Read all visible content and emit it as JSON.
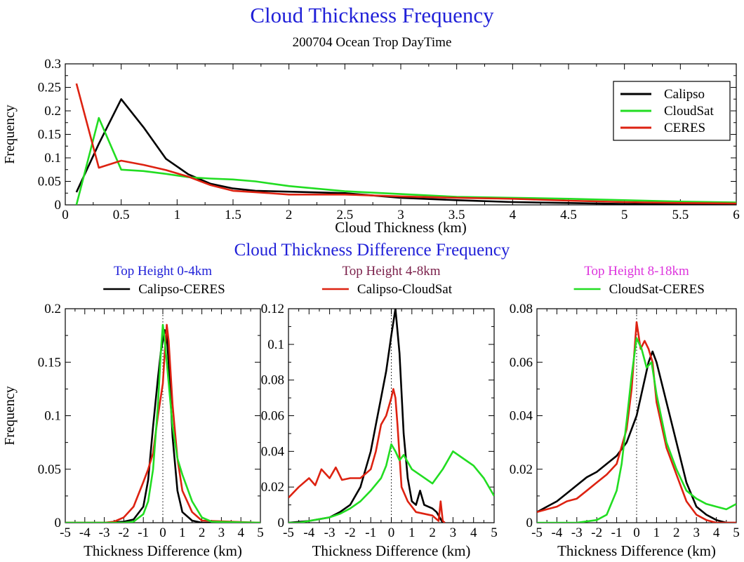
{
  "title": "Cloud Thickness Frequency",
  "subtitle": "200704 Ocean Trop DayTime",
  "section_title": "Cloud Thickness Difference Frequency",
  "chart_data": [
    {
      "type": "line",
      "title": "Cloud Thickness Frequency",
      "subtitle": "200704 Ocean Trop DayTime",
      "xlabel": "Cloud Thickness (km)",
      "ylabel": "Frequency",
      "xlim": [
        0,
        6
      ],
      "ylim": [
        0,
        0.3
      ],
      "xticks": [
        "0",
        "0.5",
        "1",
        "1.5",
        "2",
        "2.5",
        "3",
        "3.5",
        "4",
        "4.5",
        "5",
        "5.5",
        "6"
      ],
      "yticks": [
        "0",
        "0.05",
        "0.1",
        "0.15",
        "0.2",
        "0.25",
        "0.3"
      ],
      "legend": "top-right",
      "grid": false,
      "series": [
        {
          "name": "Calipso",
          "color": "#000000",
          "x": [
            0.1,
            0.3,
            0.5,
            0.7,
            0.9,
            1.1,
            1.3,
            1.5,
            1.7,
            2.0,
            2.5,
            3.0,
            3.5,
            4.0,
            4.5,
            5.0,
            5.5,
            6.0
          ],
          "y": [
            0.027,
            0.13,
            0.225,
            0.165,
            0.098,
            0.065,
            0.045,
            0.035,
            0.03,
            0.028,
            0.025,
            0.015,
            0.01,
            0.006,
            0.004,
            0.002,
            0.001,
            0.001
          ]
        },
        {
          "name": "CloudSat",
          "color": "#22dd22",
          "x": [
            0.1,
            0.3,
            0.5,
            0.7,
            0.9,
            1.1,
            1.3,
            1.5,
            1.7,
            2.0,
            2.5,
            3.0,
            3.5,
            4.0,
            4.5,
            5.0,
            5.5,
            6.0
          ],
          "y": [
            0.0,
            0.185,
            0.075,
            0.072,
            0.066,
            0.059,
            0.056,
            0.054,
            0.05,
            0.04,
            0.029,
            0.023,
            0.017,
            0.015,
            0.013,
            0.01,
            0.007,
            0.005
          ]
        },
        {
          "name": "CERES",
          "color": "#dd2211",
          "x": [
            0.1,
            0.3,
            0.5,
            0.7,
            0.9,
            1.1,
            1.3,
            1.5,
            1.7,
            2.0,
            2.5,
            3.0,
            3.5,
            4.0,
            4.5,
            5.0,
            5.5,
            6.0
          ],
          "y": [
            0.258,
            0.079,
            0.094,
            0.085,
            0.074,
            0.06,
            0.042,
            0.03,
            0.027,
            0.022,
            0.022,
            0.018,
            0.015,
            0.013,
            0.009,
            0.006,
            0.004,
            0.003
          ]
        }
      ]
    },
    {
      "type": "line",
      "title": "Top Height 0-4km",
      "title_color": "#2020d8",
      "legend_entry": {
        "name": "Calipso-CERES",
        "color": "#000000"
      },
      "xlabel": "Thickness Difference (km)",
      "ylabel": "Frequency",
      "xlim": [
        -5,
        5
      ],
      "ylim": [
        0,
        0.2
      ],
      "xticks": [
        "-5",
        "-4",
        "-3",
        "-2",
        "-1",
        "0",
        "1",
        "2",
        "3",
        "4",
        "5"
      ],
      "yticks": [
        "0",
        "0.05",
        "0.1",
        "0.15",
        "0.2"
      ],
      "zero_line": true,
      "series": [
        {
          "name": "Calipso-CERES",
          "color": "#000000",
          "x": [
            -5,
            -3,
            -2,
            -1.5,
            -1,
            -0.75,
            -0.5,
            -0.25,
            -0.1,
            0,
            0.1,
            0.2,
            0.3,
            0.5,
            0.75,
            1,
            1.5,
            2,
            5
          ],
          "y": [
            0,
            0,
            0.001,
            0.003,
            0.015,
            0.04,
            0.09,
            0.135,
            0.16,
            0.17,
            0.18,
            0.175,
            0.15,
            0.08,
            0.03,
            0.01,
            0.002,
            0,
            0
          ]
        },
        {
          "name": "Calipso-CloudSat",
          "color": "#dd2211",
          "x": [
            -5,
            -3,
            -2.5,
            -2,
            -1.5,
            -1,
            -0.75,
            -0.5,
            -0.25,
            0,
            0.1,
            0.2,
            0.3,
            0.5,
            0.75,
            1,
            1.5,
            2,
            5
          ],
          "y": [
            0,
            0,
            0.001,
            0.005,
            0.015,
            0.038,
            0.05,
            0.065,
            0.1,
            0.13,
            0.16,
            0.185,
            0.17,
            0.11,
            0.06,
            0.03,
            0.01,
            0.002,
            0
          ]
        },
        {
          "name": "CloudSat-CERES",
          "color": "#22dd22",
          "x": [
            -5,
            -2,
            -1.5,
            -1,
            -0.75,
            -0.5,
            -0.25,
            -0.1,
            0,
            0.1,
            0.25,
            0.5,
            0.75,
            1,
            1.5,
            2,
            2.5,
            5
          ],
          "y": [
            0,
            0,
            0.001,
            0.008,
            0.02,
            0.05,
            0.11,
            0.16,
            0.185,
            0.17,
            0.14,
            0.09,
            0.06,
            0.045,
            0.02,
            0.005,
            0.001,
            0
          ]
        }
      ]
    },
    {
      "type": "line",
      "title": "Top Height 4-8km",
      "title_color": "#7a1f4a",
      "legend_entry": {
        "name": "Calipso-CloudSat",
        "color": "#dd2211"
      },
      "xlabel": "Thickness Difference (km)",
      "ylabel": "",
      "xlim": [
        -5,
        5
      ],
      "ylim": [
        0,
        0.12
      ],
      "xticks": [
        "-5",
        "-4",
        "-3",
        "-2",
        "-1",
        "0",
        "1",
        "2",
        "3",
        "4",
        "5"
      ],
      "yticks": [
        "0",
        "0.02",
        "0.04",
        "0.06",
        "0.08",
        "0.1",
        "0.12"
      ],
      "zero_line": true,
      "series": [
        {
          "name": "Calipso-CERES",
          "color": "#000000",
          "x": [
            -5,
            -4,
            -3,
            -2.5,
            -2,
            -1.5,
            -1,
            -0.75,
            -0.5,
            -0.25,
            0,
            0.2,
            0.4,
            0.6,
            0.8,
            1,
            1.2,
            1.4,
            1.6,
            2,
            2.2,
            2.5
          ],
          "y": [
            0,
            0.001,
            0.003,
            0.006,
            0.01,
            0.02,
            0.04,
            0.055,
            0.07,
            0.085,
            0.105,
            0.12,
            0.095,
            0.05,
            0.025,
            0.012,
            0.01,
            0.018,
            0.01,
            0.008,
            0.006,
            0
          ]
        },
        {
          "name": "Calipso-CloudSat",
          "color": "#dd2211",
          "x": [
            -5,
            -4.5,
            -4,
            -3.7,
            -3.4,
            -3,
            -2.7,
            -2.4,
            -2,
            -1.5,
            -1,
            -0.75,
            -0.5,
            -0.25,
            0,
            0.1,
            0.2,
            0.3,
            0.5,
            0.8,
            1.2,
            1.6,
            2,
            2.3,
            2.4,
            2.5,
            2.6
          ],
          "y": [
            0.014,
            0.02,
            0.025,
            0.021,
            0.03,
            0.025,
            0.031,
            0.024,
            0.025,
            0.025,
            0.03,
            0.04,
            0.055,
            0.06,
            0.07,
            0.075,
            0.07,
            0.055,
            0.02,
            0.012,
            0.006,
            0.005,
            0.004,
            0.001,
            0.012,
            0.001,
            0
          ]
        },
        {
          "name": "CloudSat-CERES",
          "color": "#22dd22",
          "x": [
            -5,
            -4.5,
            -4,
            -3.5,
            -3,
            -2.5,
            -2,
            -1.5,
            -1,
            -0.5,
            -0.25,
            0,
            0.2,
            0.4,
            0.6,
            1,
            1.5,
            2,
            2.5,
            3,
            3.5,
            4,
            4.5,
            5
          ],
          "y": [
            0,
            0,
            0.001,
            0.002,
            0.003,
            0.005,
            0.008,
            0.012,
            0.018,
            0.025,
            0.032,
            0.044,
            0.04,
            0.035,
            0.038,
            0.03,
            0.026,
            0.022,
            0.03,
            0.04,
            0.036,
            0.032,
            0.025,
            0.015
          ]
        }
      ]
    },
    {
      "type": "line",
      "title": "Top Height 8-18km",
      "title_color": "#dd33dd",
      "legend_entry": {
        "name": "CloudSat-CERES",
        "color": "#22dd22"
      },
      "xlabel": "Thickness Difference (km)",
      "ylabel": "",
      "xlim": [
        -5,
        5
      ],
      "ylim": [
        0,
        0.08
      ],
      "xticks": [
        "-5",
        "-4",
        "-3",
        "-2",
        "-1",
        "0",
        "1",
        "2",
        "3",
        "4",
        "5"
      ],
      "yticks": [
        "0",
        "0.02",
        "0.04",
        "0.06",
        "0.08"
      ],
      "zero_line": true,
      "series": [
        {
          "name": "Calipso-CERES",
          "color": "#000000",
          "x": [
            -5,
            -4.5,
            -4,
            -3.5,
            -3,
            -2.5,
            -2,
            -1.5,
            -1,
            -0.5,
            0,
            0.3,
            0.6,
            0.8,
            1,
            1.5,
            2,
            2.5,
            3,
            3.5,
            4,
            4.5,
            5
          ],
          "y": [
            0.004,
            0.006,
            0.008,
            0.011,
            0.014,
            0.017,
            0.019,
            0.022,
            0.025,
            0.03,
            0.04,
            0.05,
            0.06,
            0.064,
            0.06,
            0.045,
            0.03,
            0.015,
            0.006,
            0.003,
            0.001,
            0,
            0
          ]
        },
        {
          "name": "Calipso-CloudSat",
          "color": "#dd2211",
          "x": [
            -5,
            -4.5,
            -4,
            -3.5,
            -3,
            -2.5,
            -2,
            -1.5,
            -1,
            -0.5,
            -0.25,
            0,
            0.2,
            0.4,
            0.6,
            0.8,
            1,
            1.5,
            2,
            2.5,
            3,
            3.5,
            4,
            5
          ],
          "y": [
            0.004,
            0.005,
            0.006,
            0.008,
            0.009,
            0.012,
            0.015,
            0.018,
            0.022,
            0.035,
            0.05,
            0.075,
            0.065,
            0.068,
            0.065,
            0.06,
            0.045,
            0.028,
            0.018,
            0.008,
            0.003,
            0.001,
            0,
            0
          ]
        },
        {
          "name": "CloudSat-CERES",
          "color": "#22dd22",
          "x": [
            -5,
            -3,
            -2,
            -1.5,
            -1,
            -0.75,
            -0.5,
            -0.25,
            0,
            0.25,
            0.5,
            0.75,
            1,
            1.5,
            2,
            2.5,
            3,
            3.5,
            4,
            4.5,
            5
          ],
          "y": [
            0,
            0,
            0.001,
            0.003,
            0.012,
            0.022,
            0.038,
            0.055,
            0.069,
            0.065,
            0.058,
            0.06,
            0.048,
            0.03,
            0.02,
            0.012,
            0.009,
            0.007,
            0.006,
            0.005,
            0.007
          ]
        }
      ]
    }
  ]
}
